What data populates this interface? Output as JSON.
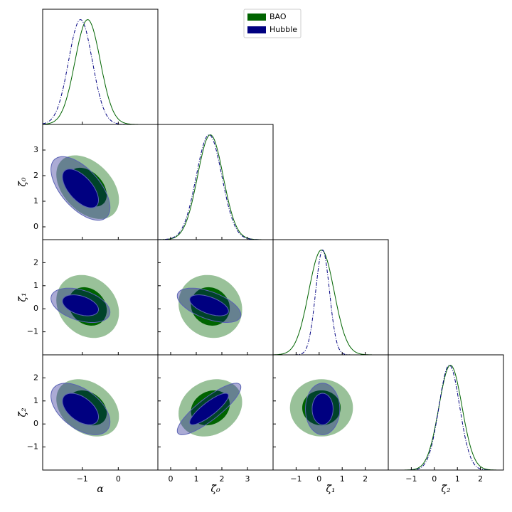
{
  "chart_data": {
    "type": "corner",
    "legend_loc": "upper center",
    "parameters": [
      {
        "label": "α",
        "lim": [
          -2.1,
          1.1
        ],
        "ticks": [
          {
            "value": -1,
            "label": "−1"
          },
          0
        ]
      },
      {
        "label": "ζ̃₀",
        "lim": [
          -0.5,
          4
        ],
        "ticks": [
          0,
          1,
          2,
          3
        ]
      },
      {
        "label": "ζ̃₁",
        "lim": [
          -2,
          3
        ],
        "ticks": [
          {
            "value": -1,
            "label": "−1"
          },
          0,
          1,
          2
        ]
      },
      {
        "label": "ζ̃₂",
        "lim": [
          -2,
          3
        ],
        "ticks": [
          {
            "value": -1,
            "label": "−1"
          },
          0,
          1,
          2
        ]
      }
    ],
    "series": [
      {
        "name": "BAO",
        "color": "#006400",
        "mean": [
          -0.85,
          1.55,
          0.1,
          0.7
        ],
        "sigma": [
          0.35,
          0.5,
          0.55,
          0.5
        ],
        "correlation": [
          -0.4,
          -0.2,
          -0.1,
          -0.3,
          0.2,
          0
        ]
      },
      {
        "name": "Hubble",
        "color": "#000080",
        "mean": [
          -1.05,
          1.5,
          0.15,
          0.65
        ],
        "sigma": [
          0.33,
          0.5,
          0.3,
          0.45
        ],
        "correlation": [
          -0.6,
          -0.4,
          -0.55,
          -0.5,
          0.85,
          0
        ]
      }
    ]
  }
}
